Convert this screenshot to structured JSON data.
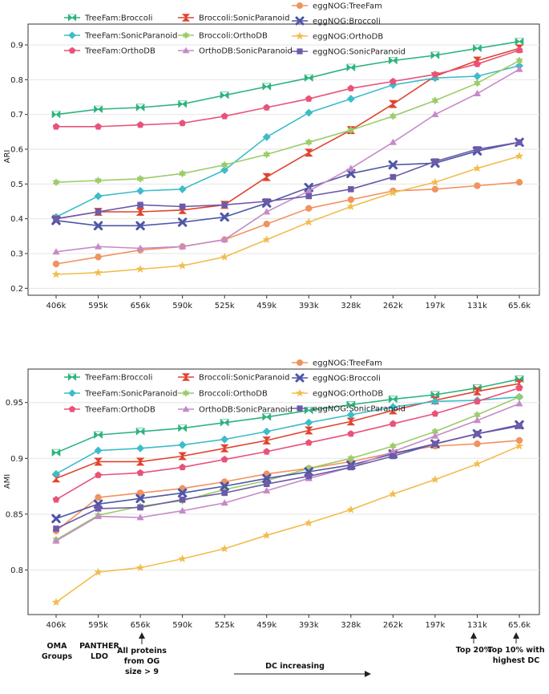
{
  "colors": {
    "TreeFam:Broccoli": "#2fb37f",
    "Broccoli:SonicParanoid": "#e0432e",
    "eggNOG:TreeFam": "#f2925e",
    "TreeFam:SonicParanoid": "#3dbcc9",
    "Broccoli:OrthoDB": "#9ccc6a",
    "eggNOG:Broccoli": "#4e56a6",
    "TreeFam:OrthoDB": "#e8537a",
    "OrthoDB:SonicParanoid": "#c58ac8",
    "eggNOG:OrthoDB": "#f1bd4e",
    "eggNOG:SonicParanoid": "#6d5aa8"
  },
  "chart_data": [
    {
      "type": "line",
      "ylabel": "ARI",
      "ylim": [
        0.18,
        0.96
      ],
      "yticks": [
        "0.2",
        "0.3",
        "0.4",
        "0.5",
        "0.6",
        "0.7",
        "0.8",
        "0.9"
      ],
      "categories": [
        "406k",
        "595k",
        "656k",
        "590k",
        "525k",
        "459k",
        "393k",
        "328k",
        "262k",
        "197k",
        "131k",
        "65.6k"
      ],
      "series": [
        {
          "name": "TreeFam:Broccoli",
          "marker": "bowtie",
          "values": [
            0.7,
            0.715,
            0.72,
            0.73,
            0.755,
            0.78,
            0.805,
            0.835,
            0.855,
            0.87,
            0.89,
            0.91
          ]
        },
        {
          "name": "Broccoli:SonicParanoid",
          "marker": "hourglass",
          "values": [
            0.4,
            0.42,
            0.42,
            0.425,
            0.44,
            0.52,
            0.59,
            0.655,
            0.73,
            0.81,
            0.855,
            0.89
          ]
        },
        {
          "name": "eggNOG:TreeFam",
          "marker": "circle",
          "values": [
            0.27,
            0.29,
            0.31,
            0.32,
            0.34,
            0.385,
            0.43,
            0.455,
            0.48,
            0.485,
            0.495,
            0.505
          ]
        },
        {
          "name": "TreeFam:SonicParanoid",
          "marker": "diamond",
          "values": [
            0.405,
            0.465,
            0.48,
            0.485,
            0.54,
            0.635,
            0.705,
            0.745,
            0.785,
            0.805,
            0.81,
            0.84
          ]
        },
        {
          "name": "Broccoli:OrthoDB",
          "marker": "hexagram",
          "values": [
            0.505,
            0.51,
            0.515,
            0.53,
            0.555,
            0.585,
            0.62,
            0.655,
            0.695,
            0.74,
            0.79,
            0.855
          ]
        },
        {
          "name": "eggNOG:Broccoli",
          "marker": "x",
          "values": [
            0.395,
            0.38,
            0.38,
            0.39,
            0.405,
            0.445,
            0.49,
            0.53,
            0.555,
            0.56,
            0.595,
            0.62
          ]
        },
        {
          "name": "TreeFam:OrthoDB",
          "marker": "pentagon",
          "values": [
            0.665,
            0.665,
            0.67,
            0.675,
            0.695,
            0.72,
            0.745,
            0.775,
            0.795,
            0.815,
            0.845,
            0.885
          ]
        },
        {
          "name": "OrthoDB:SonicParanoid",
          "marker": "triangle",
          "values": [
            0.305,
            0.32,
            0.315,
            0.32,
            0.34,
            0.42,
            0.48,
            0.545,
            0.62,
            0.7,
            0.76,
            0.83
          ]
        },
        {
          "name": "eggNOG:OrthoDB",
          "marker": "star",
          "values": [
            0.24,
            0.245,
            0.255,
            0.265,
            0.29,
            0.34,
            0.39,
            0.435,
            0.475,
            0.505,
            0.545,
            0.58
          ]
        },
        {
          "name": "eggNOG:SonicParanoid",
          "marker": "square",
          "values": [
            0.4,
            0.42,
            0.44,
            0.435,
            0.44,
            0.45,
            0.465,
            0.485,
            0.52,
            0.565,
            0.6,
            0.62
          ]
        }
      ]
    },
    {
      "type": "line",
      "ylabel": "AMI",
      "ylim": [
        0.76,
        0.98
      ],
      "yticks": [
        "0.8",
        "0.85",
        "0.9",
        "0.95"
      ],
      "categories": [
        "406k",
        "595k",
        "656k",
        "590k",
        "525k",
        "459k",
        "393k",
        "328k",
        "262k",
        "197k",
        "131k",
        "65.6k"
      ],
      "series": [
        {
          "name": "TreeFam:Broccoli",
          "marker": "bowtie",
          "values": [
            0.905,
            0.921,
            0.924,
            0.927,
            0.932,
            0.937,
            0.943,
            0.948,
            0.953,
            0.957,
            0.963,
            0.971
          ]
        },
        {
          "name": "Broccoli:SonicParanoid",
          "marker": "hourglass",
          "values": [
            0.882,
            0.897,
            0.897,
            0.902,
            0.909,
            0.916,
            0.925,
            0.933,
            0.943,
            0.952,
            0.96,
            0.967
          ]
        },
        {
          "name": "eggNOG:TreeFam",
          "marker": "circle",
          "values": [
            0.835,
            0.865,
            0.869,
            0.873,
            0.879,
            0.886,
            0.891,
            0.897,
            0.905,
            0.911,
            0.913,
            0.916
          ]
        },
        {
          "name": "TreeFam:SonicParanoid",
          "marker": "diamond",
          "values": [
            0.886,
            0.907,
            0.909,
            0.912,
            0.917,
            0.924,
            0.932,
            0.939,
            0.946,
            0.951,
            0.952,
            0.955
          ]
        },
        {
          "name": "Broccoli:OrthoDB",
          "marker": "hexagram",
          "values": [
            0.827,
            0.849,
            0.857,
            0.862,
            0.872,
            0.88,
            0.891,
            0.9,
            0.911,
            0.924,
            0.939,
            0.955
          ]
        },
        {
          "name": "eggNOG:Broccoli",
          "marker": "x",
          "values": [
            0.846,
            0.859,
            0.864,
            0.869,
            0.875,
            0.882,
            0.888,
            0.894,
            0.904,
            0.913,
            0.922,
            0.93
          ]
        },
        {
          "name": "TreeFam:OrthoDB",
          "marker": "pentagon",
          "values": [
            0.863,
            0.885,
            0.887,
            0.892,
            0.899,
            0.906,
            0.914,
            0.922,
            0.931,
            0.94,
            0.951,
            0.963
          ]
        },
        {
          "name": "OrthoDB:SonicParanoid",
          "marker": "triangle",
          "values": [
            0.826,
            0.848,
            0.847,
            0.853,
            0.86,
            0.871,
            0.882,
            0.892,
            0.906,
            0.92,
            0.934,
            0.949
          ]
        },
        {
          "name": "eggNOG:OrthoDB",
          "marker": "star",
          "values": [
            0.771,
            0.798,
            0.802,
            0.81,
            0.819,
            0.831,
            0.842,
            0.854,
            0.868,
            0.881,
            0.895,
            0.911
          ]
        },
        {
          "name": "eggNOG:SonicParanoid",
          "marker": "square",
          "values": [
            0.837,
            0.855,
            0.856,
            0.863,
            0.869,
            0.877,
            0.884,
            0.892,
            0.902,
            0.913,
            0.922,
            0.929
          ]
        }
      ]
    }
  ],
  "annotations": {
    "oma": [
      "OMA",
      "Groups"
    ],
    "panther": [
      "PANTHER",
      "LDO"
    ],
    "allproteins": [
      "All proteins",
      "from OG",
      "size > 9"
    ],
    "dc_increasing": "DC increasing",
    "top20": "Top 20%",
    "top10": [
      "Top 10% with",
      "highest DC"
    ]
  }
}
